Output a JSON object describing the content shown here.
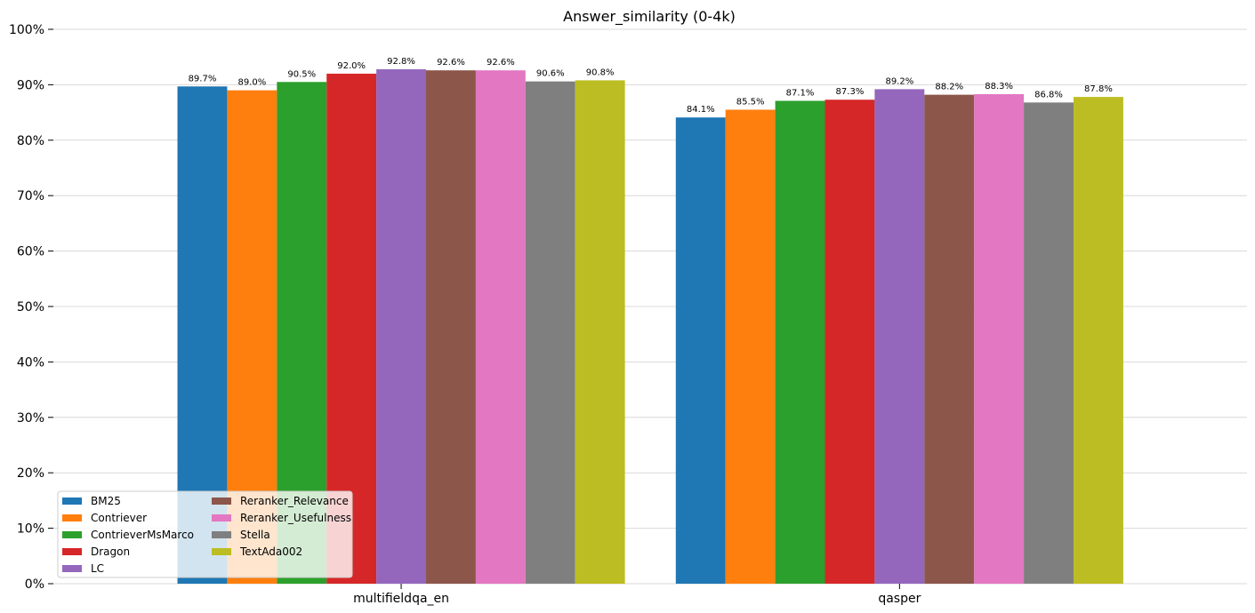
{
  "chart_data": {
    "type": "bar",
    "title": "Answer_similarity (0-4k)",
    "xlabel": "",
    "ylabel": "",
    "ylim": [
      0,
      100
    ],
    "y_ticks": [
      "0%",
      "10%",
      "20%",
      "30%",
      "40%",
      "50%",
      "60%",
      "70%",
      "80%",
      "90%",
      "100%"
    ],
    "grid": "horizontal",
    "legend_position": "lower-left",
    "legend_columns": 2,
    "categories": [
      "multifieldqa_en",
      "qasper"
    ],
    "series": [
      {
        "name": "BM25",
        "color": "#1f77b4",
        "values": [
          89.7,
          84.1
        ],
        "labels": [
          "89.7%",
          "84.1%"
        ]
      },
      {
        "name": "Contriever",
        "color": "#ff7f0e",
        "values": [
          89.0,
          85.5
        ],
        "labels": [
          "89.0%",
          "85.5%"
        ]
      },
      {
        "name": "ContrieverMsMarco",
        "color": "#2ca02c",
        "values": [
          90.5,
          87.1
        ],
        "labels": [
          "90.5%",
          "87.1%"
        ]
      },
      {
        "name": "Dragon",
        "color": "#d62728",
        "values": [
          92.0,
          87.3
        ],
        "labels": [
          "92.0%",
          "87.3%"
        ]
      },
      {
        "name": "LC",
        "color": "#9467bd",
        "values": [
          92.8,
          89.2
        ],
        "labels": [
          "92.8%",
          "89.2%"
        ]
      },
      {
        "name": "Reranker_Relevance",
        "color": "#8c564b",
        "values": [
          92.6,
          88.2
        ],
        "labels": [
          "92.6%",
          "88.2%"
        ]
      },
      {
        "name": "Reranker_Usefulness",
        "color": "#e377c2",
        "values": [
          92.6,
          88.3
        ],
        "labels": [
          "92.6%",
          "88.3%"
        ]
      },
      {
        "name": "Stella",
        "color": "#7f7f7f",
        "values": [
          90.6,
          86.8
        ],
        "labels": [
          "90.6%",
          "86.8%"
        ]
      },
      {
        "name": "TextAda002",
        "color": "#bcbd22",
        "values": [
          90.8,
          87.8
        ],
        "labels": [
          "90.8%",
          "87.8%"
        ]
      }
    ]
  }
}
